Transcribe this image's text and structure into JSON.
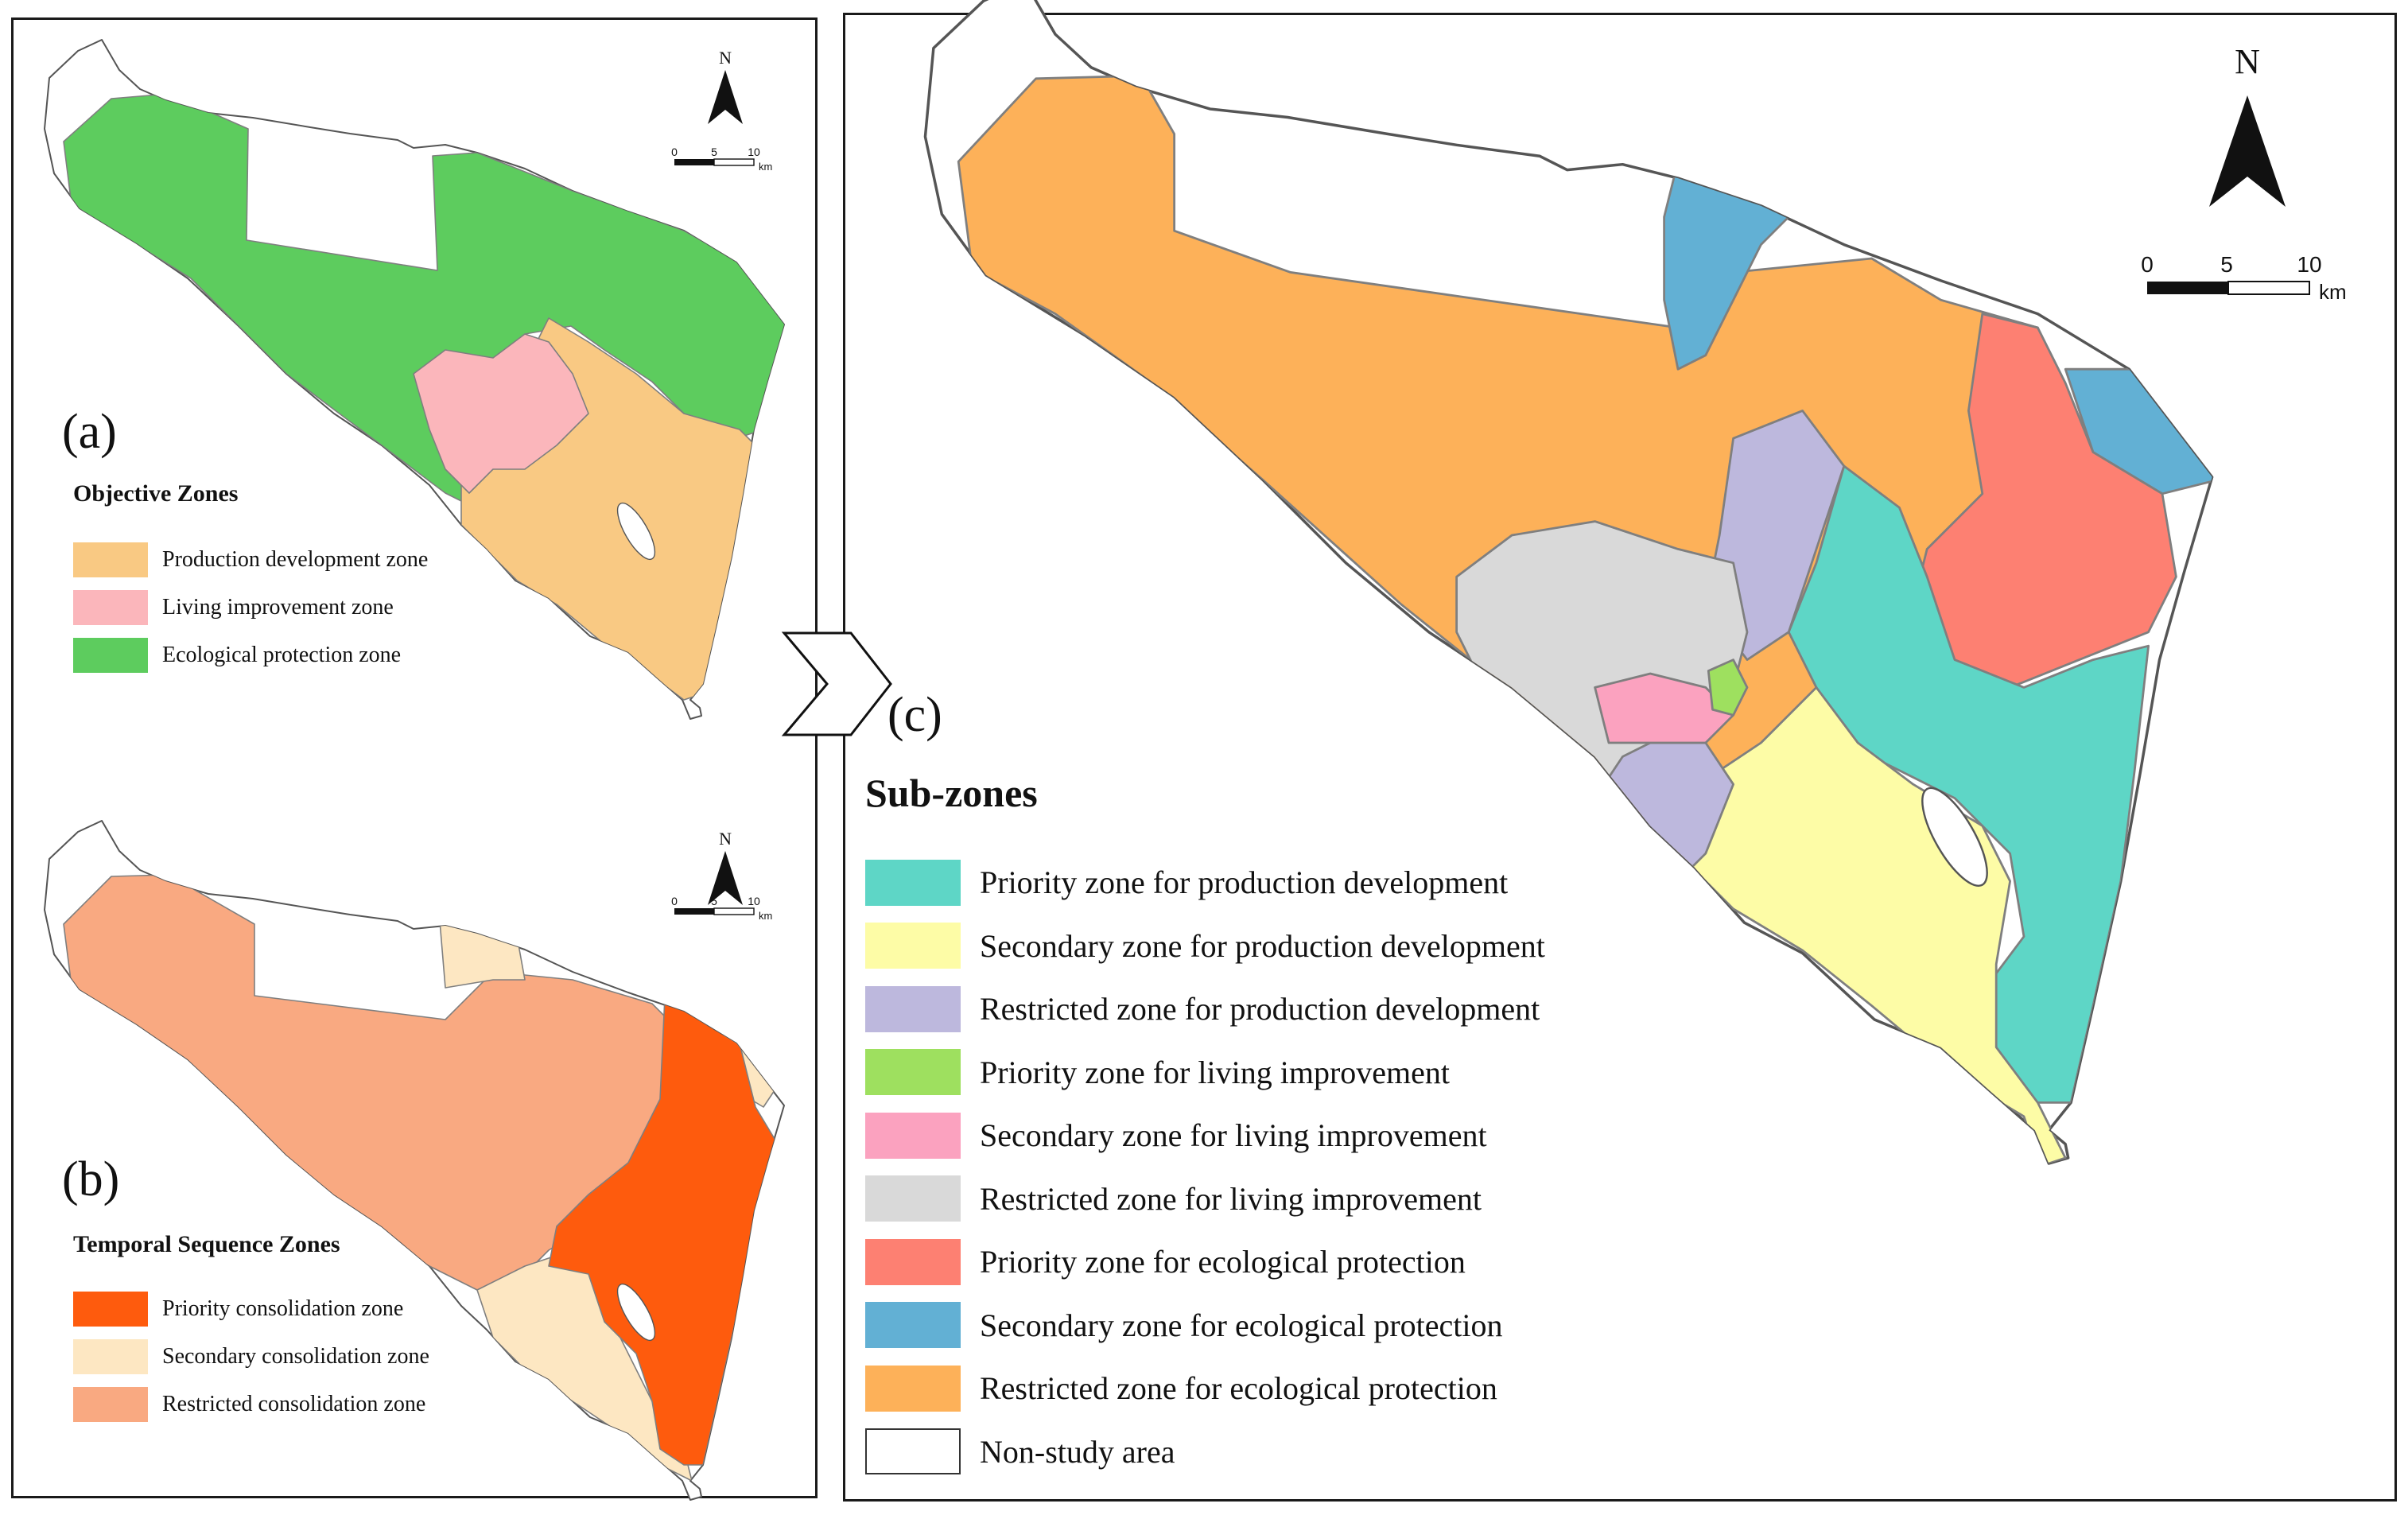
{
  "panel_a": {
    "label": "(a)",
    "legend_title": "Objective Zones",
    "legend": [
      {
        "label": "Production development zone",
        "color": "#f9c983"
      },
      {
        "label": "Living improvement zone",
        "color": "#fbb6bb"
      },
      {
        "label": "Ecological protection zone",
        "color": "#5dcc5e"
      }
    ]
  },
  "panel_b": {
    "label": "(b)",
    "legend_title": "Temporal Sequence Zones",
    "legend": [
      {
        "label": "Priority consolidation zone",
        "color": "#fe5b0d"
      },
      {
        "label": "Secondary consolidation zone",
        "color": "#fde7c2"
      },
      {
        "label": "Restricted consolidation zone",
        "color": "#f9a981"
      }
    ]
  },
  "panel_c": {
    "label": "(c)",
    "legend_title": "Sub-zones",
    "legend": [
      {
        "label": "Priority zone for production development",
        "color": "#5ed6c6"
      },
      {
        "label": "Secondary zone for production development",
        "color": "#fdfca6"
      },
      {
        "label": "Restricted zone for production development",
        "color": "#bdb8dd"
      },
      {
        "label": "Priority zone for living improvement",
        "color": "#9ee05f"
      },
      {
        "label": "Secondary zone for living improvement",
        "color": "#fba2bf"
      },
      {
        "label": "Restricted zone for living improvement",
        "color": "#d9d9d9"
      },
      {
        "label": "Priority zone for  ecological protection",
        "color": "#fd8072"
      },
      {
        "label": "Secondary zone for  ecological protection",
        "color": "#62b0d4"
      },
      {
        "label": "Restricted zone for  ecological protection",
        "color": "#fdb159"
      },
      {
        "label": "Non-study area",
        "color": "#ffffff"
      }
    ]
  },
  "map_elements": {
    "north_label": "N",
    "scale_ticks": [
      "0",
      "5",
      "10"
    ],
    "scale_unit": "km"
  }
}
